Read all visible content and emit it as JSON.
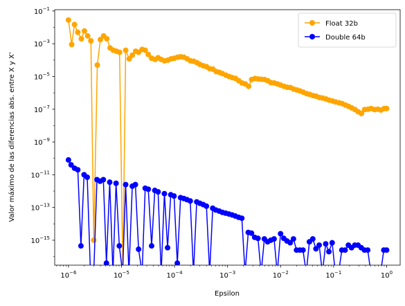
{
  "chart_data": {
    "type": "line",
    "xscale": "log",
    "yscale": "log",
    "xlim": [
      5.5e-07,
      1.8
    ],
    "ylim": [
      3e-17,
      0.12
    ],
    "xlabel": "Epsilon",
    "ylabel": "Valor máximo de las diferencias abs. entre X y X'",
    "x_ticks": [
      {
        "value": 1e-06,
        "base": "10",
        "exp": "−6"
      },
      {
        "value": 1e-05,
        "base": "10",
        "exp": "−5"
      },
      {
        "value": 0.0001,
        "base": "10",
        "exp": "−4"
      },
      {
        "value": 0.001,
        "base": "10",
        "exp": "−3"
      },
      {
        "value": 0.01,
        "base": "10",
        "exp": "−2"
      },
      {
        "value": 0.1,
        "base": "10",
        "exp": "−1"
      },
      {
        "value": 1,
        "base": "10",
        "exp": "0"
      }
    ],
    "y_ticks": [
      {
        "value": 1e-15,
        "base": "10",
        "exp": "−15"
      },
      {
        "value": 1e-13,
        "base": "10",
        "exp": "−13"
      },
      {
        "value": 1e-11,
        "base": "10",
        "exp": "−11"
      },
      {
        "value": 1e-09,
        "base": "10",
        "exp": "−9"
      },
      {
        "value": 1e-07,
        "base": "10",
        "exp": "−7"
      },
      {
        "value": 1e-05,
        "base": "10",
        "exp": "−5"
      },
      {
        "value": 0.001,
        "base": "10",
        "exp": "−3"
      },
      {
        "value": 0.1,
        "base": "10",
        "exp": "−1"
      }
    ],
    "legend_position": "top-right",
    "series": [
      {
        "name": "Float 32b",
        "color": "#FFA500",
        "x": [
          1e-06,
          1.15e-06,
          1.3e-06,
          1.5e-06,
          1.75e-06,
          2e-06,
          2.3e-06,
          2.65e-06,
          3e-06,
          3.5e-06,
          4e-06,
          4.6e-06,
          5.3e-06,
          6.1e-06,
          7e-06,
          8e-06,
          9.2e-06,
          1.06e-05,
          1.2e-05,
          1.4e-05,
          1.6e-05,
          1.85e-05,
          2.1e-05,
          2.45e-05,
          2.8e-05,
          3.2e-05,
          3.7e-05,
          4.3e-05,
          4.9e-05,
          5.6e-05,
          6.5e-05,
          7.5e-05,
          8.6e-05,
          9.9e-05,
          0.000114,
          0.00013,
          0.00015,
          0.000173,
          0.0002,
          0.00023,
          0.000265,
          0.0003,
          0.00035,
          0.0004,
          0.00046,
          0.00053,
          0.00061,
          0.0007,
          0.0008,
          0.00093,
          0.00107,
          0.00123,
          0.00142,
          0.00163,
          0.00188,
          0.00216,
          0.0025,
          0.00285,
          0.0033,
          0.0038,
          0.00435,
          0.005,
          0.00575,
          0.0066,
          0.0076,
          0.00875,
          0.01,
          0.0116,
          0.0133,
          0.0153,
          0.0176,
          0.0203,
          0.0233,
          0.0268,
          0.031,
          0.0355,
          0.041,
          0.047,
          0.054,
          0.062,
          0.072,
          0.082,
          0.095,
          0.109,
          0.126,
          0.145,
          0.167,
          0.192,
          0.22,
          0.254,
          0.29,
          0.335,
          0.385,
          0.445,
          0.51,
          0.59,
          0.68,
          0.78,
          0.9,
          1.0
        ],
        "y": [
          0.028,
          0.0009,
          0.015,
          0.005,
          0.002,
          0.006,
          0.003,
          0.0015,
          1e-15,
          5e-05,
          0.0018,
          0.003,
          0.002,
          0.00055,
          0.0004,
          0.00035,
          0.0003,
          1e-17,
          0.0004,
          0.00012,
          0.0002,
          0.00035,
          0.0003,
          0.00045,
          0.0004,
          0.00022,
          0.00013,
          0.00011,
          0.00014,
          0.00011,
          9e-05,
          0.0001,
          0.00012,
          0.00013,
          0.00015,
          0.00016,
          0.00015,
          0.00012,
          9e-05,
          8.5e-05,
          7e-05,
          5.5e-05,
          4.5e-05,
          4e-05,
          3e-05,
          2.8e-05,
          2e-05,
          1.8e-05,
          1.5e-05,
          1.2e-05,
          1e-05,
          8.5e-06,
          7.5e-06,
          5.5e-06,
          4e-06,
          3.5e-06,
          2.5e-06,
          6.5e-06,
          7.5e-06,
          7e-06,
          6.8e-06,
          6.5e-06,
          5.5e-06,
          4.2e-06,
          4e-06,
          3.5e-06,
          3e-06,
          2.5e-06,
          2.2e-06,
          2.1e-06,
          1.7e-06,
          1.5e-06,
          1.3e-06,
          1.1e-06,
          9e-07,
          8e-07,
          6.8e-07,
          6.2e-07,
          5.2e-07,
          4.8e-07,
          4.2e-07,
          3.6e-07,
          3.2e-07,
          2.8e-07,
          2.5e-07,
          2.2e-07,
          1.8e-07,
          1.5e-07,
          1.2e-07,
          9.5e-08,
          7e-08,
          5.5e-08,
          9.5e-08,
          1e-07,
          1.1e-07,
          9.5e-08,
          1e-07,
          9e-08,
          1.1e-07,
          1.1e-07
        ]
      },
      {
        "name": "Double 64b",
        "color": "#0000FF",
        "x": [
          1e-06,
          1.12e-06,
          1.3e-06,
          1.5e-06,
          1.72e-06,
          1.97e-06,
          2.26e-06,
          2.6e-06,
          3e-06,
          3.45e-06,
          3.95e-06,
          4.55e-06,
          5.2e-06,
          6e-06,
          6.9e-06,
          7.9e-06,
          9.1e-06,
          1.05e-05,
          1.2e-05,
          1.38e-05,
          1.6e-05,
          1.83e-05,
          2.1e-05,
          2.45e-05,
          2.8e-05,
          3.2e-05,
          3.7e-05,
          4.25e-05,
          4.9e-05,
          5.6e-05,
          6.45e-05,
          7.4e-05,
          8.5e-05,
          9.8e-05,
          0.000113,
          0.00013,
          0.00015,
          0.000172,
          0.000198,
          0.000228,
          0.000262,
          0.0003,
          0.000348,
          0.0004,
          0.00046,
          0.000525,
          0.0006,
          0.000695,
          0.0008,
          0.00092,
          0.00106,
          0.00122,
          0.0014,
          0.00162,
          0.00186,
          0.00214,
          0.00246,
          0.00283,
          0.00325,
          0.00375,
          0.0043,
          0.00495,
          0.0057,
          0.00655,
          0.00755,
          0.00865,
          0.01,
          0.0115,
          0.0132,
          0.0152,
          0.0175,
          0.02,
          0.023,
          0.0265,
          0.0305,
          0.035,
          0.0405,
          0.0465,
          0.0535,
          0.0615,
          0.071,
          0.0815,
          0.094,
          0.108,
          0.124,
          0.143,
          0.165,
          0.19,
          0.218,
          0.251,
          0.289,
          0.332,
          0.382,
          0.44,
          0.506,
          0.582,
          0.67,
          0.77,
          0.885,
          1.0
        ],
        "y": [
          8e-11,
          4e-11,
          2.5e-11,
          2e-11,
          4.5e-16,
          1e-11,
          7e-12,
          1e-17,
          1e-17,
          5e-12,
          4e-12,
          5e-12,
          4e-17,
          3.5e-12,
          1e-17,
          3e-12,
          4.5e-16,
          1e-17,
          2.5e-12,
          1e-17,
          2e-12,
          2.5e-12,
          2.8e-16,
          1e-17,
          1.5e-12,
          1.3e-12,
          4.5e-16,
          1.1e-12,
          9e-13,
          1e-17,
          7e-13,
          3.5e-16,
          6e-13,
          5e-13,
          4e-17,
          4e-13,
          3.5e-13,
          3e-13,
          2.5e-13,
          1e-17,
          2.2e-13,
          1.8e-13,
          1.5e-13,
          1.2e-13,
          1e-17,
          9e-14,
          7e-14,
          6e-14,
          5e-14,
          4.5e-14,
          4e-14,
          3.5e-14,
          3e-14,
          2.5e-14,
          2.2e-14,
          1e-17,
          3e-15,
          2.7e-15,
          1.5e-15,
          1.3e-15,
          1e-17,
          1.2e-15,
          8e-16,
          1e-15,
          1.2e-15,
          1e-17,
          2.5e-15,
          1.3e-15,
          9e-16,
          7e-16,
          1.2e-15,
          2.5e-16,
          2.5e-16,
          2.5e-16,
          1e-17,
          8e-16,
          1.2e-15,
          3e-16,
          5e-16,
          1e-17,
          6e-16,
          2e-16,
          7e-16,
          1e-17,
          1e-17,
          2.5e-16,
          2.5e-16,
          5e-16,
          3.5e-16,
          5e-16,
          5e-16,
          3.5e-16,
          2.5e-16,
          2.5e-16,
          1e-17,
          1e-17,
          1e-17,
          1e-17,
          2.5e-16,
          2.5e-16
        ]
      }
    ]
  }
}
